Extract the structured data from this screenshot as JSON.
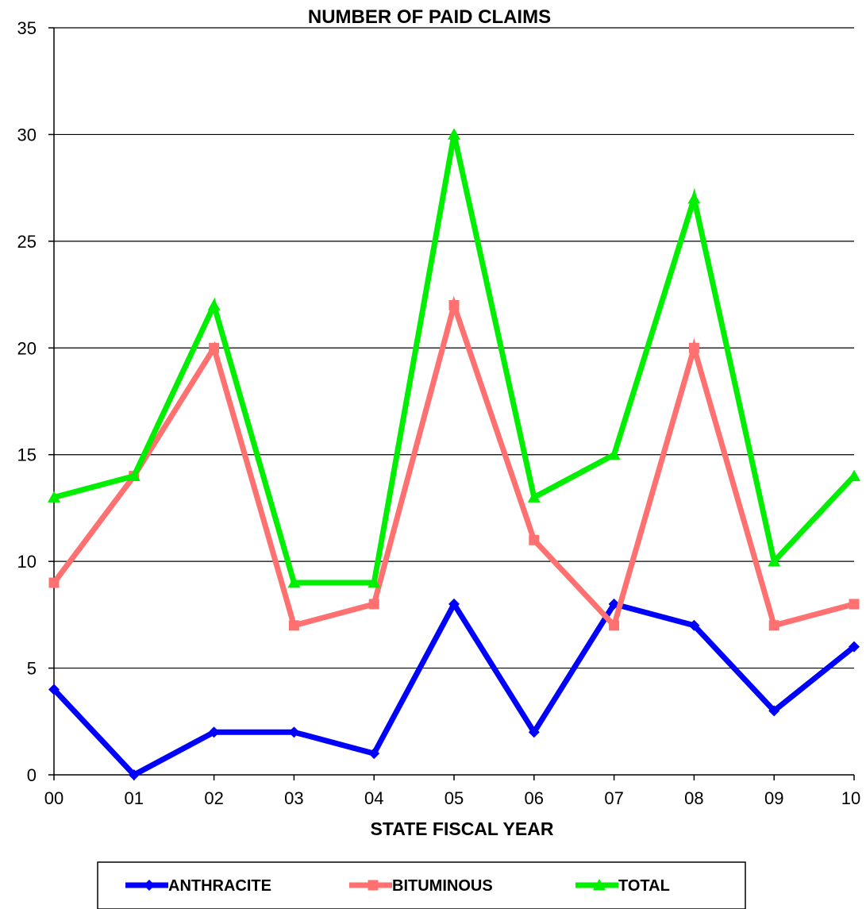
{
  "chart_data": {
    "type": "line",
    "title": "NUMBER OF PAID CLAIMS",
    "xlabel": "STATE FISCAL YEAR",
    "ylabel": "",
    "categories": [
      "00",
      "01",
      "02",
      "03",
      "04",
      "05",
      "06",
      "07",
      "08",
      "09",
      "10"
    ],
    "ylim": [
      0,
      35
    ],
    "yticks": [
      0,
      5,
      10,
      15,
      20,
      25,
      30,
      35
    ],
    "grid": true,
    "legend_position": "bottom",
    "series": [
      {
        "name": "ANTHRACITE",
        "color": "#0000ff",
        "marker": "diamond",
        "values": [
          4,
          0,
          2,
          2,
          1,
          8,
          2,
          8,
          7,
          3,
          6
        ]
      },
      {
        "name": "BITUMINOUS",
        "color": "#ff7070",
        "marker": "square",
        "values": [
          9,
          14,
          20,
          7,
          8,
          22,
          11,
          7,
          20,
          7,
          8
        ]
      },
      {
        "name": "TOTAL",
        "color": "#00ee00",
        "marker": "triangle",
        "values": [
          13,
          14,
          22,
          9,
          9,
          30,
          13,
          15,
          27,
          10,
          14
        ]
      }
    ]
  }
}
